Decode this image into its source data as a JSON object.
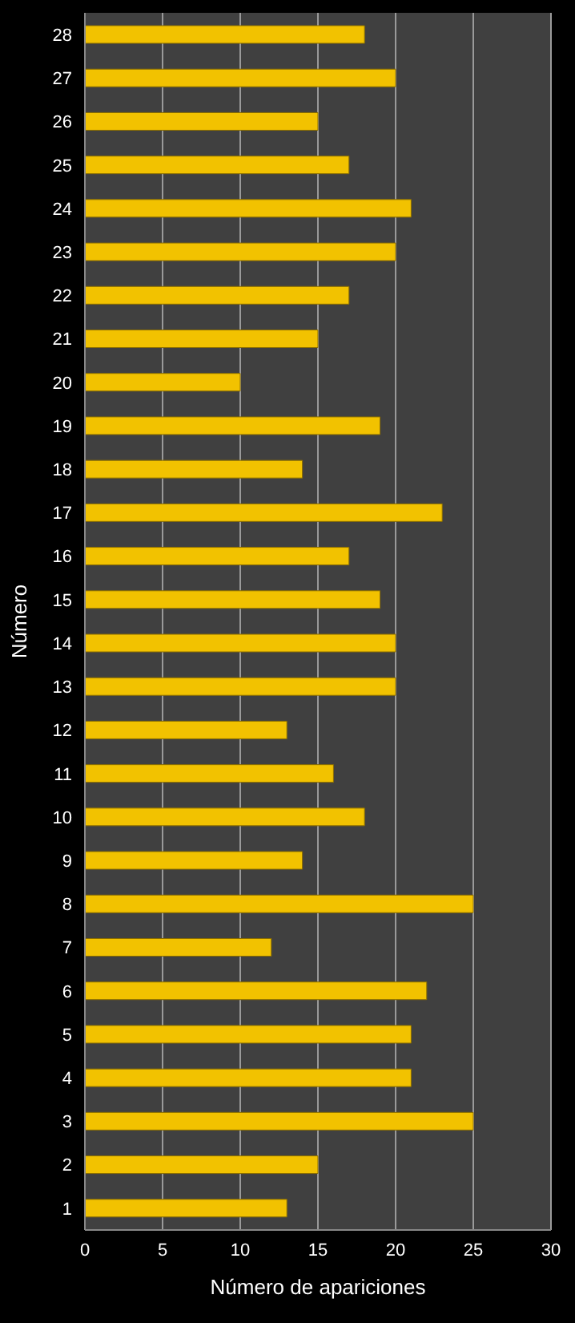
{
  "chart_data": {
    "type": "bar",
    "orientation": "horizontal",
    "xlabel": "Número de apariciones",
    "ylabel": "Número",
    "categories": [
      "28",
      "27",
      "26",
      "25",
      "24",
      "23",
      "22",
      "21",
      "20",
      "19",
      "18",
      "17",
      "16",
      "15",
      "14",
      "13",
      "12",
      "11",
      "10",
      "9",
      "8",
      "7",
      "6",
      "5",
      "4",
      "3",
      "2",
      "1"
    ],
    "values": [
      18,
      20,
      15,
      17,
      21,
      20,
      17,
      15,
      10,
      19,
      14,
      23,
      17,
      19,
      20,
      20,
      13,
      16,
      18,
      14,
      25,
      12,
      22,
      21,
      21,
      25,
      15,
      13
    ],
    "color": "#f2c200",
    "xlim": [
      0,
      30
    ],
    "xticks": [
      0,
      5,
      10,
      15,
      20,
      25,
      30
    ],
    "grid": "x"
  }
}
